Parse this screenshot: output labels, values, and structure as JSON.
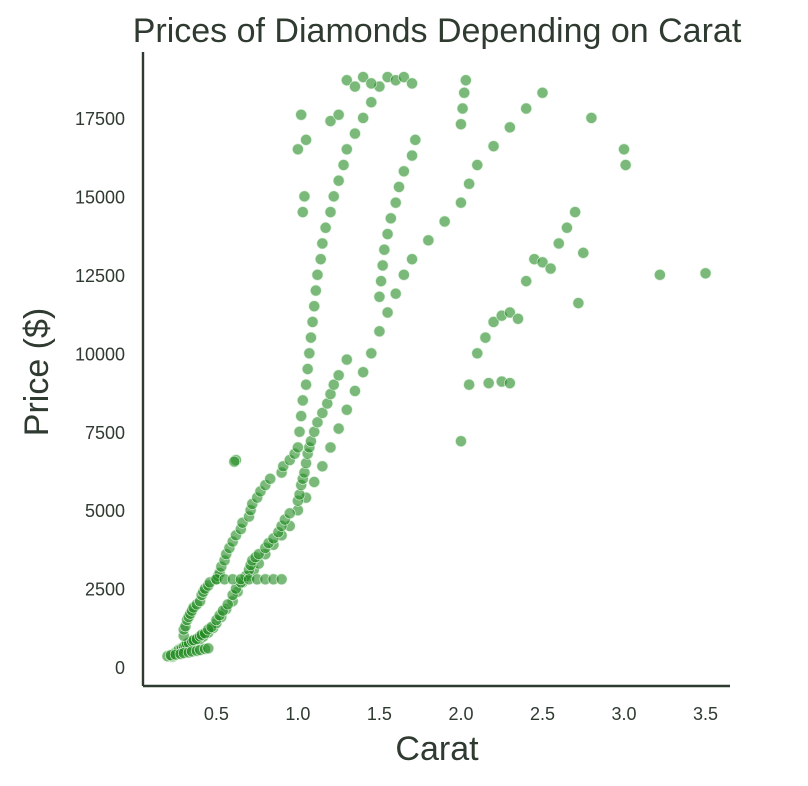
{
  "chart_data": {
    "type": "scatter",
    "title": "Prices of Diamonds Depending on Carat",
    "xlabel": "Carat",
    "ylabel": "Price ($)",
    "xlim": [
      0.05,
      3.65
    ],
    "ylim": [
      -600,
      19600
    ],
    "xticks": [
      0.5,
      1.0,
      1.5,
      2.0,
      2.5,
      3.0,
      3.5
    ],
    "xtick_labels": [
      "0.5",
      "1.0",
      "1.5",
      "2.0",
      "2.5",
      "3.0",
      "3.5"
    ],
    "yticks": [
      0,
      2500,
      5000,
      7500,
      10000,
      12500,
      15000,
      17500
    ],
    "ytick_labels": [
      "0",
      "2500",
      "5000",
      "7500",
      "10000",
      "12500",
      "15000",
      "17500"
    ],
    "grid": false,
    "legend": "none",
    "colors": {
      "marker_fill": "#228b22",
      "marker_edge": "#d8f0d8",
      "text": "#2f3a30",
      "axis": "#2f3a30"
    },
    "series": [
      {
        "points": [
          [
            0.23,
            330
          ],
          [
            0.24,
            380
          ],
          [
            0.25,
            420
          ],
          [
            0.26,
            470
          ],
          [
            0.27,
            500
          ],
          [
            0.28,
            520
          ],
          [
            0.3,
            560
          ],
          [
            0.31,
            600
          ],
          [
            0.32,
            650
          ],
          [
            0.33,
            700
          ],
          [
            0.35,
            760
          ],
          [
            0.37,
            820
          ],
          [
            0.4,
            900
          ],
          [
            0.42,
            980
          ],
          [
            0.45,
            1100
          ],
          [
            0.48,
            1250
          ],
          [
            0.5,
            1400
          ],
          [
            0.53,
            1600
          ],
          [
            0.56,
            1850
          ],
          [
            0.6,
            2100
          ],
          [
            0.63,
            2400
          ],
          [
            0.66,
            2700
          ],
          [
            0.7,
            2900
          ],
          [
            0.73,
            3100
          ],
          [
            0.76,
            3300
          ],
          [
            0.8,
            3600
          ],
          [
            0.85,
            3900
          ],
          [
            0.9,
            4200
          ],
          [
            0.95,
            4500
          ],
          [
            1.0,
            5000
          ],
          [
            1.05,
            5400
          ],
          [
            1.1,
            5900
          ],
          [
            1.15,
            6400
          ],
          [
            1.2,
            7000
          ],
          [
            1.25,
            7600
          ],
          [
            1.3,
            8200
          ],
          [
            1.35,
            8800
          ],
          [
            1.4,
            9400
          ],
          [
            1.45,
            10000
          ],
          [
            1.5,
            10700
          ],
          [
            1.55,
            11300
          ],
          [
            1.6,
            11900
          ],
          [
            1.65,
            12500
          ],
          [
            1.7,
            13000
          ],
          [
            1.8,
            13600
          ],
          [
            1.9,
            14200
          ],
          [
            2.0,
            14800
          ],
          [
            2.05,
            15400
          ],
          [
            2.1,
            16000
          ],
          [
            2.2,
            16600
          ],
          [
            2.3,
            17200
          ],
          [
            2.4,
            17800
          ],
          [
            2.5,
            18300
          ],
          [
            0.23,
            360
          ],
          [
            0.24,
            420
          ],
          [
            0.25,
            470
          ],
          [
            0.26,
            500
          ],
          [
            0.27,
            560
          ],
          [
            0.28,
            580
          ],
          [
            0.29,
            610
          ],
          [
            0.3,
            650
          ],
          [
            0.31,
            700
          ],
          [
            0.32,
            740
          ],
          [
            0.33,
            780
          ],
          [
            0.35,
            830
          ],
          [
            0.36,
            860
          ],
          [
            0.38,
            900
          ],
          [
            0.4,
            980
          ],
          [
            0.41,
            1030
          ],
          [
            0.43,
            1080
          ],
          [
            0.45,
            1200
          ],
          [
            0.47,
            1280
          ],
          [
            0.5,
            1500
          ],
          [
            0.52,
            1650
          ],
          [
            0.54,
            1800
          ],
          [
            0.57,
            2000
          ],
          [
            0.6,
            2300
          ],
          [
            0.62,
            2500
          ],
          [
            0.65,
            2700
          ],
          [
            0.68,
            2900
          ],
          [
            0.7,
            3100
          ],
          [
            0.71,
            3250
          ],
          [
            0.72,
            3400
          ],
          [
            0.74,
            3500
          ],
          [
            0.76,
            3600
          ],
          [
            0.8,
            3800
          ],
          [
            0.82,
            3950
          ],
          [
            0.85,
            4100
          ],
          [
            0.88,
            4300
          ],
          [
            0.9,
            4500
          ],
          [
            0.92,
            4700
          ],
          [
            0.95,
            4900
          ],
          [
            1.0,
            5300
          ],
          [
            1.01,
            5500
          ],
          [
            1.02,
            5800
          ],
          [
            1.03,
            6000
          ],
          [
            1.04,
            6200
          ],
          [
            1.05,
            6500
          ],
          [
            1.06,
            6800
          ],
          [
            1.07,
            7000
          ],
          [
            1.08,
            7200
          ],
          [
            1.1,
            7500
          ],
          [
            1.12,
            7800
          ],
          [
            1.15,
            8100
          ],
          [
            1.18,
            8400
          ],
          [
            1.2,
            8700
          ],
          [
            1.22,
            9000
          ],
          [
            1.25,
            9300
          ],
          [
            1.3,
            9800
          ],
          [
            1.5,
            11800
          ],
          [
            1.51,
            12300
          ],
          [
            1.52,
            12800
          ],
          [
            1.53,
            13300
          ],
          [
            1.55,
            13800
          ],
          [
            1.57,
            14300
          ],
          [
            1.6,
            14800
          ],
          [
            1.62,
            15300
          ],
          [
            1.65,
            15800
          ],
          [
            1.7,
            16300
          ],
          [
            1.72,
            16800
          ],
          [
            2.0,
            17300
          ],
          [
            2.01,
            17800
          ],
          [
            2.02,
            18300
          ],
          [
            2.03,
            18700
          ],
          [
            0.3,
            1000
          ],
          [
            0.3,
            1200
          ],
          [
            0.31,
            1300
          ],
          [
            0.32,
            1500
          ],
          [
            0.33,
            1600
          ],
          [
            0.34,
            1700
          ],
          [
            0.35,
            1800
          ],
          [
            0.36,
            1900
          ],
          [
            0.38,
            2000
          ],
          [
            0.4,
            2100
          ],
          [
            0.41,
            2300
          ],
          [
            0.42,
            2400
          ],
          [
            0.43,
            2500
          ],
          [
            0.45,
            2600
          ],
          [
            0.46,
            2700
          ],
          [
            0.5,
            2800
          ],
          [
            0.51,
            2900
          ],
          [
            0.52,
            3000
          ],
          [
            0.53,
            3200
          ],
          [
            0.55,
            3400
          ],
          [
            0.56,
            3600
          ],
          [
            0.58,
            3800
          ],
          [
            0.6,
            4000
          ],
          [
            0.62,
            4200
          ],
          [
            0.65,
            4400
          ],
          [
            0.66,
            4600
          ],
          [
            0.7,
            4800
          ],
          [
            0.71,
            5000
          ],
          [
            0.72,
            5200
          ],
          [
            0.75,
            5400
          ],
          [
            0.77,
            5600
          ],
          [
            0.8,
            5800
          ],
          [
            0.83,
            6000
          ],
          [
            0.9,
            6200
          ],
          [
            0.91,
            6400
          ],
          [
            0.95,
            6600
          ],
          [
            0.98,
            6800
          ],
          [
            1.0,
            7000
          ],
          [
            1.01,
            7500
          ],
          [
            1.02,
            8000
          ],
          [
            1.03,
            8500
          ],
          [
            1.05,
            9000
          ],
          [
            1.06,
            9500
          ],
          [
            1.07,
            10000
          ],
          [
            1.08,
            10500
          ],
          [
            1.09,
            11000
          ],
          [
            1.1,
            11500
          ],
          [
            1.11,
            12000
          ],
          [
            1.12,
            12500
          ],
          [
            1.14,
            13000
          ],
          [
            1.15,
            13500
          ],
          [
            1.17,
            14000
          ],
          [
            1.2,
            14500
          ],
          [
            1.22,
            15000
          ],
          [
            1.25,
            15500
          ],
          [
            1.28,
            16000
          ],
          [
            1.3,
            16500
          ],
          [
            1.35,
            17000
          ],
          [
            1.4,
            17500
          ],
          [
            1.45,
            18000
          ],
          [
            1.5,
            18500
          ],
          [
            0.62,
            6600
          ],
          [
            0.61,
            6550
          ],
          [
            1.02,
            17600
          ],
          [
            1.0,
            16500
          ],
          [
            1.05,
            16800
          ],
          [
            1.03,
            14500
          ],
          [
            1.04,
            15000
          ],
          [
            1.2,
            17400
          ],
          [
            1.25,
            17600
          ],
          [
            1.3,
            18700
          ],
          [
            1.35,
            18500
          ],
          [
            1.4,
            18800
          ],
          [
            1.45,
            18600
          ],
          [
            1.55,
            18800
          ],
          [
            1.6,
            18700
          ],
          [
            1.65,
            18800
          ],
          [
            1.7,
            18600
          ],
          [
            2.0,
            7200
          ],
          [
            2.05,
            9000
          ],
          [
            2.1,
            10000
          ],
          [
            2.15,
            10500
          ],
          [
            2.2,
            11000
          ],
          [
            2.25,
            11200
          ],
          [
            2.3,
            11300
          ],
          [
            2.35,
            11100
          ],
          [
            2.4,
            12300
          ],
          [
            2.45,
            13000
          ],
          [
            2.5,
            12900
          ],
          [
            2.55,
            12700
          ],
          [
            2.6,
            13500
          ],
          [
            2.65,
            14000
          ],
          [
            2.7,
            14500
          ],
          [
            2.75,
            13200
          ],
          [
            2.72,
            11600
          ],
          [
            2.8,
            17500
          ],
          [
            3.0,
            16500
          ],
          [
            3.01,
            16000
          ],
          [
            3.22,
            12500
          ],
          [
            3.5,
            12550
          ],
          [
            2.17,
            9050
          ],
          [
            2.25,
            9100
          ],
          [
            2.3,
            9050
          ],
          [
            0.5,
            2800
          ],
          [
            0.55,
            2800
          ],
          [
            0.6,
            2800
          ],
          [
            0.65,
            2800
          ],
          [
            0.7,
            2800
          ],
          [
            0.75,
            2800
          ],
          [
            0.8,
            2800
          ],
          [
            0.85,
            2800
          ],
          [
            0.9,
            2800
          ],
          [
            0.2,
            350
          ],
          [
            0.22,
            380
          ],
          [
            0.25,
            400
          ],
          [
            0.28,
            420
          ],
          [
            0.3,
            450
          ],
          [
            0.33,
            470
          ],
          [
            0.35,
            500
          ],
          [
            0.38,
            520
          ],
          [
            0.4,
            550
          ],
          [
            0.43,
            580
          ],
          [
            0.45,
            600
          ]
        ]
      }
    ]
  }
}
